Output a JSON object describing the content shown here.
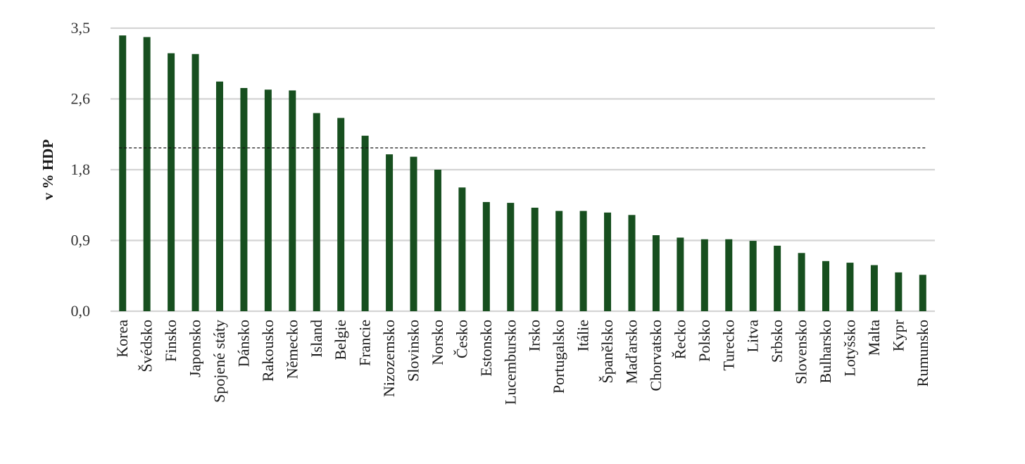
{
  "chart_data": {
    "type": "bar",
    "ylabel": "v % HDP",
    "ylim": [
      0,
      3.5
    ],
    "yticks": [
      "0,0",
      "0,9",
      "1,8",
      "2,6",
      "3,5"
    ],
    "ytick_values": [
      0,
      0.875,
      1.75,
      2.625,
      3.5
    ],
    "reference_line": 2.02,
    "grid": true,
    "bar_color": "#174f1f",
    "categories": [
      "Korea",
      "Švédsko",
      "Finsko",
      "Japonsko",
      "Spojené státy",
      "Dánsko",
      "Rakousko",
      "Německo",
      "Island",
      "Belgie",
      "Francie",
      "Nizozemsko",
      "Slovinsko",
      "Norsko",
      "Česko",
      "Estonsko",
      "Lucembursko",
      "Irsko",
      "Portugalsko",
      "Itálie",
      "Španělsko",
      "Maďarsko",
      "Chorvatsko",
      "Řecko",
      "Polsko",
      "Turecko",
      "Litva",
      "Srbsko",
      "Slovensko",
      "Bulharsko",
      "Lotyšsko",
      "Malta",
      "Kypr",
      "Rumunsko"
    ],
    "values": [
      3.41,
      3.39,
      3.19,
      3.18,
      2.84,
      2.76,
      2.74,
      2.73,
      2.45,
      2.39,
      2.17,
      1.94,
      1.91,
      1.75,
      1.53,
      1.35,
      1.34,
      1.28,
      1.24,
      1.24,
      1.22,
      1.19,
      0.94,
      0.91,
      0.89,
      0.89,
      0.87,
      0.81,
      0.72,
      0.62,
      0.6,
      0.57,
      0.48,
      0.45
    ]
  }
}
